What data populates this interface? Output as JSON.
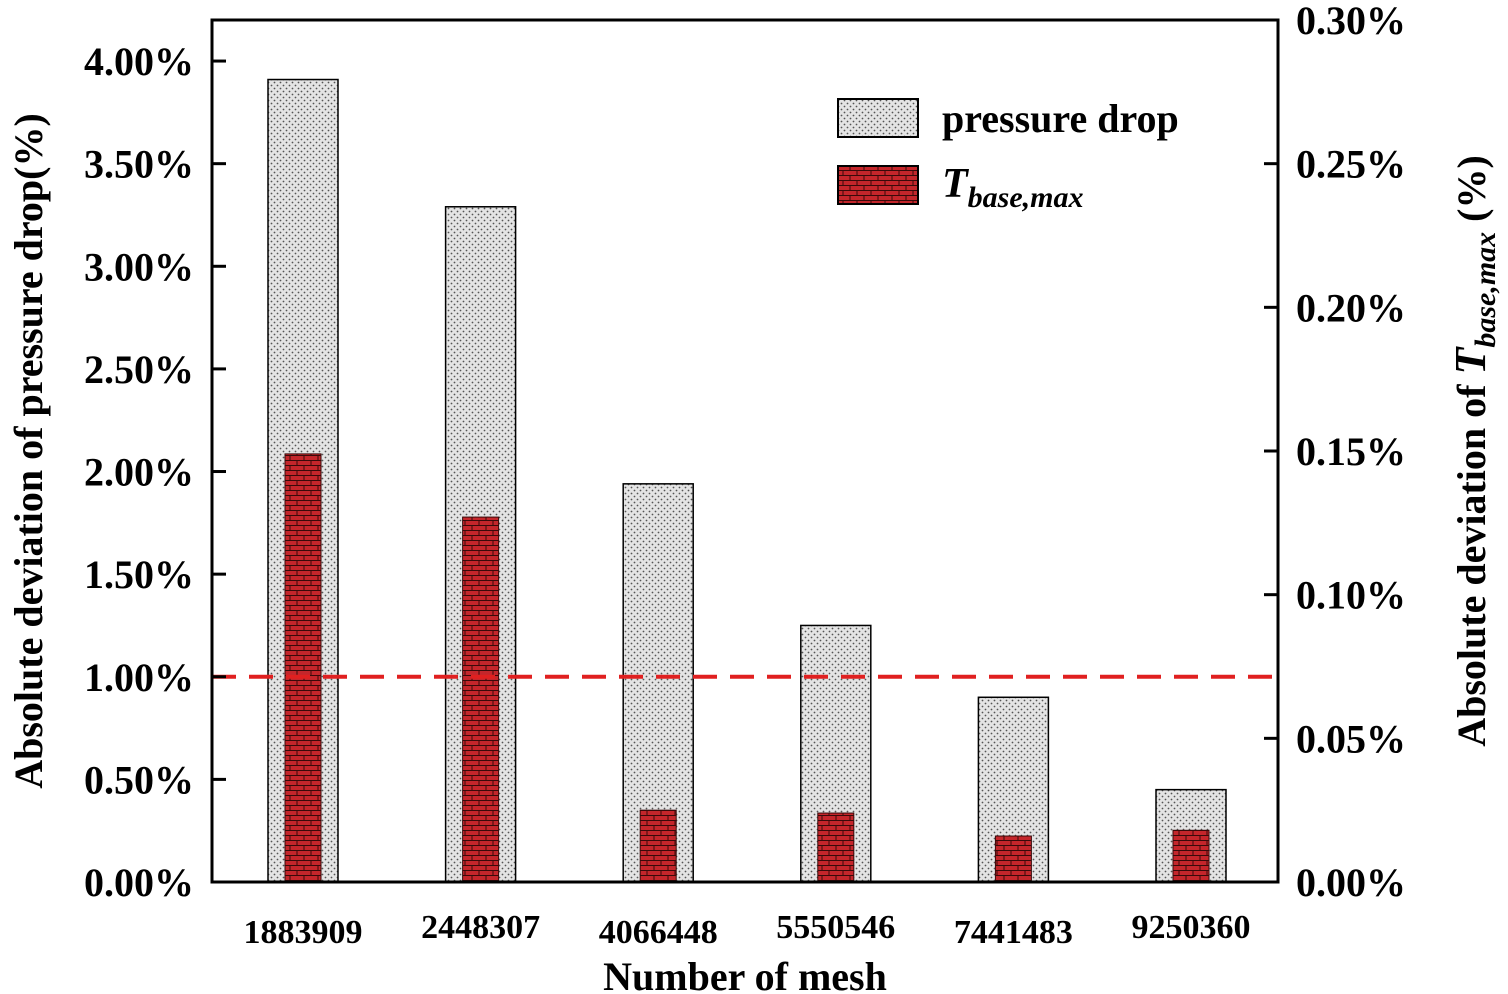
{
  "chart_data": {
    "type": "bar",
    "categories": [
      "1883909",
      "2448307",
      "4066448",
      "5550546",
      "7441483",
      "9250360"
    ],
    "series": [
      {
        "name": "pressure drop",
        "axis": "left",
        "values": [
          3.91,
          3.29,
          1.94,
          1.25,
          0.9,
          0.45
        ],
        "color": "#d9d9d9",
        "pattern": "dots"
      },
      {
        "name": "T_base,max",
        "legend_main": "T",
        "legend_sub": "base,max",
        "axis": "right",
        "values": [
          0.149,
          0.127,
          0.025,
          0.024,
          0.016,
          0.018
        ],
        "color": "#c0262a",
        "pattern": "bricks"
      }
    ],
    "y_left": {
      "label": "Absolute deviation of pressure drop(%)",
      "lim": [
        0,
        4.2
      ],
      "ticks": [
        0,
        0.5,
        1.0,
        1.5,
        2.0,
        2.5,
        3.0,
        3.5,
        4.0
      ],
      "tick_labels": [
        "0.00%",
        "0.50%",
        "1.00%",
        "1.50%",
        "2.00%",
        "2.50%",
        "3.00%",
        "3.50%",
        "4.00%"
      ]
    },
    "y_right": {
      "label_prefix": "Absolute deviation of ",
      "label_main": "T",
      "label_sub": "base,max",
      "label_suffix": " (%)",
      "lim": [
        0,
        0.3
      ],
      "ticks": [
        0,
        0.05,
        0.1,
        0.15,
        0.2,
        0.25,
        0.3
      ],
      "tick_labels": [
        "0.00%",
        "0.05%",
        "0.10%",
        "0.15%",
        "0.20%",
        "0.25%",
        "0.30%"
      ]
    },
    "xlabel": "Number of mesh",
    "reference_line": {
      "axis": "left",
      "value": 1.0,
      "color": "#e02020",
      "style": "dashed"
    },
    "legend_position": "top-right"
  }
}
